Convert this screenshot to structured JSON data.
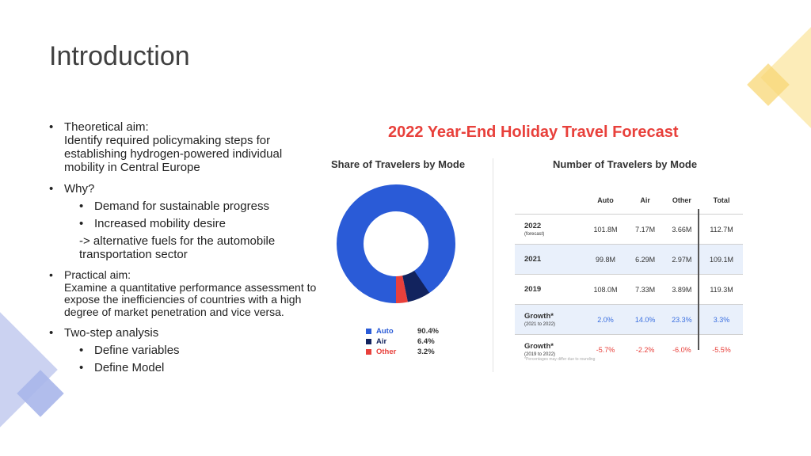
{
  "slide": {
    "title": "Introduction",
    "bullets": {
      "theoretical_label": "Theoretical aim:",
      "theoretical_text": "Identify required policymaking steps for establishing hydrogen-powered individual mobility in Central Europe",
      "why_label": "Why?",
      "why_items": [
        "Demand for sustainable progress",
        "Increased mobility desire"
      ],
      "why_conclusion": "-> alternative fuels for the automobile transportation sector",
      "practical_label": "Practical aim:",
      "practical_text": "Examine a quantitative performance assessment to expose the inefficiencies of countries with a high degree of market penetration and vice versa.",
      "analysis_label": "Two-step analysis",
      "analysis_items": [
        "Define variables",
        "Define Model"
      ]
    }
  },
  "infographic": {
    "title": "2022 Year-End Holiday Travel Forecast",
    "share_title": "Share of Travelers by Mode",
    "number_title": "Number of Travelers by Mode",
    "footnote": "*Percentages may differ due to rounding"
  },
  "chart_data": [
    {
      "type": "pie",
      "title": "Share of Travelers by Mode",
      "categories": [
        "Auto",
        "Air",
        "Other"
      ],
      "values": [
        90.4,
        6.4,
        3.2
      ],
      "value_labels": [
        "90.4%",
        "6.4%",
        "3.2%"
      ],
      "colors": [
        "#2a5bd7",
        "#12235e",
        "#e8403b"
      ]
    },
    {
      "type": "table",
      "title": "Number of Travelers by Mode",
      "columns": [
        "",
        "Auto",
        "Air",
        "Other",
        "Total"
      ],
      "rows": [
        {
          "label": "2022",
          "sublabel": "(forecast)",
          "values": [
            "101.8M",
            "7.17M",
            "3.66M",
            "112.7M"
          ]
        },
        {
          "label": "2021",
          "sublabel": "",
          "values": [
            "99.8M",
            "6.29M",
            "2.97M",
            "109.1M"
          ]
        },
        {
          "label": "2019",
          "sublabel": "",
          "values": [
            "108.0M",
            "7.33M",
            "3.89M",
            "119.3M"
          ]
        },
        {
          "label": "Growth*",
          "sublabel": "(2021 to 2022)",
          "values": [
            "2.0%",
            "14.0%",
            "23.3%",
            "3.3%"
          ]
        },
        {
          "label": "Growth*",
          "sublabel": "(2019 to 2022)",
          "values": [
            "-5.7%",
            "-2.2%",
            "-6.0%",
            "-5.5%"
          ]
        }
      ]
    }
  ]
}
